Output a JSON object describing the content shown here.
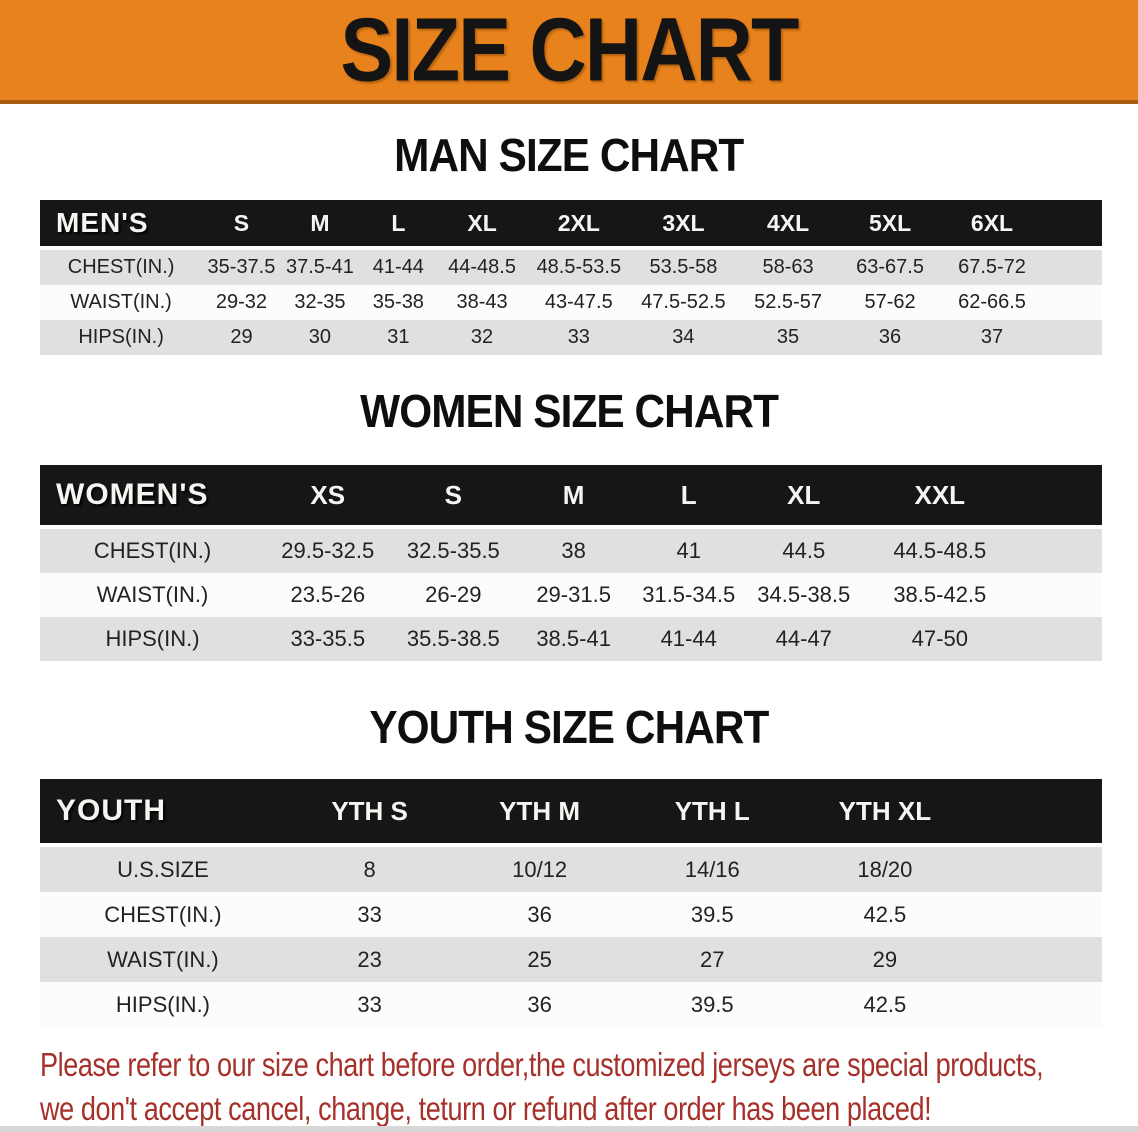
{
  "banner": {
    "title": "SIZE CHART"
  },
  "colors": {
    "banner_orange": "#E8821C",
    "banner_border": "#A85E12",
    "header_black": "#161616",
    "row_gray": "#E0E0E0",
    "row_white": "#FCFCFC",
    "disclaimer_red": "#A6312A"
  },
  "tables": [
    {
      "id": "men",
      "title": "MAN SIZE CHART",
      "header_label": "MEN'S",
      "columns": [
        "S",
        "M",
        "L",
        "XL",
        "2XL",
        "3XL",
        "4XL",
        "5XL",
        "6XL"
      ],
      "rows": [
        {
          "label": "CHEST(IN.)",
          "values": [
            "35-37.5",
            "37.5-41",
            "41-44",
            "44-48.5",
            "48.5-53.5",
            "53.5-58",
            "58-63",
            "63-67.5",
            "67.5-72"
          ]
        },
        {
          "label": "WAIST(IN.)",
          "values": [
            "29-32",
            "32-35",
            "35-38",
            "38-43",
            "43-47.5",
            "47.5-52.5",
            "52.5-57",
            "57-62",
            "62-66.5"
          ]
        },
        {
          "label": "HIPS(IN.)",
          "values": [
            "29",
            "30",
            "31",
            "32",
            "33",
            "34",
            "35",
            "36",
            "37"
          ]
        }
      ]
    },
    {
      "id": "women",
      "title": "WOMEN SIZE CHART",
      "header_label": "WOMEN'S",
      "columns": [
        "XS",
        "S",
        "M",
        "L",
        "XL",
        "XXL"
      ],
      "rows": [
        {
          "label": "CHEST(IN.)",
          "values": [
            "29.5-32.5",
            "32.5-35.5",
            "38",
            "41",
            "44.5",
            "44.5-48.5"
          ]
        },
        {
          "label": "WAIST(IN.)",
          "values": [
            "23.5-26",
            "26-29",
            "29-31.5",
            "31.5-34.5",
            "34.5-38.5",
            "38.5-42.5"
          ]
        },
        {
          "label": "HIPS(IN.)",
          "values": [
            "33-35.5",
            "35.5-38.5",
            "38.5-41",
            "41-44",
            "44-47",
            "47-50"
          ]
        }
      ]
    },
    {
      "id": "youth",
      "title": "YOUTH SIZE CHART",
      "header_label": "YOUTH",
      "columns": [
        "YTH S",
        "YTH M",
        "YTH L",
        "YTH XL"
      ],
      "rows": [
        {
          "label": "U.S.SIZE",
          "values": [
            "8",
            "10/12",
            "14/16",
            "18/20"
          ]
        },
        {
          "label": "CHEST(IN.)",
          "values": [
            "33",
            "36",
            "39.5",
            "42.5"
          ]
        },
        {
          "label": "WAIST(IN.)",
          "values": [
            "23",
            "25",
            "27",
            "29"
          ]
        },
        {
          "label": "HIPS(IN.)",
          "values": [
            "33",
            "36",
            "39.5",
            "42.5"
          ]
        }
      ]
    }
  ],
  "disclaimer": {
    "line1": "Please refer to our size chart before order,the customized jerseys are special products,",
    "line2": "we don't accept cancel, change, teturn or refund after order has been placed!"
  }
}
